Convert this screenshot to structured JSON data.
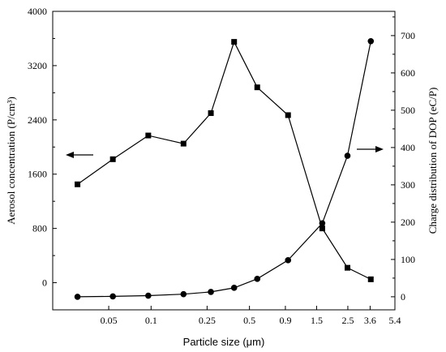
{
  "chart_data": {
    "type": "line",
    "xlabel": "Particle size (μm)",
    "x_scale": "log",
    "x_tick_labels": [
      "0.05",
      "0.1",
      "0.25",
      "0.5",
      "0.9",
      "1.5",
      "2.5",
      "3.6",
      "5.4"
    ],
    "xlim": [
      0.02,
      5.4
    ],
    "ylabel_left": "Aerosol concentration (P/cm³)",
    "ylabel_right": "Charge distribution of DOP (eC/P)",
    "ylim_left": [
      -400,
      4000
    ],
    "ylim_right": [
      -35,
      765
    ],
    "y_ticks_left": [
      "0",
      "800",
      "1600",
      "2400",
      "3200",
      "4000"
    ],
    "y_ticks_right": [
      "0",
      "100",
      "200",
      "300",
      "400",
      "500",
      "600",
      "700"
    ],
    "grid": false,
    "x_values": [
      0.03,
      0.0535,
      0.0955,
      0.17,
      0.266,
      0.389,
      0.568,
      0.94,
      1.645,
      2.485,
      3.64
    ],
    "series": [
      {
        "marker": "square",
        "axis": "left",
        "values": [
          1450,
          1820,
          2170,
          2050,
          2500,
          3550,
          2880,
          2470,
          800,
          220,
          50
        ]
      },
      {
        "marker": "circle",
        "axis": "right",
        "values": [
          0,
          1,
          3,
          7,
          13,
          24,
          48,
          98,
          197,
          378,
          685
        ]
      }
    ],
    "annotations": [
      {
        "type": "arrow",
        "direction": "left",
        "points_to": "left-axis"
      },
      {
        "type": "arrow",
        "direction": "right",
        "points_to": "right-axis"
      }
    ]
  }
}
